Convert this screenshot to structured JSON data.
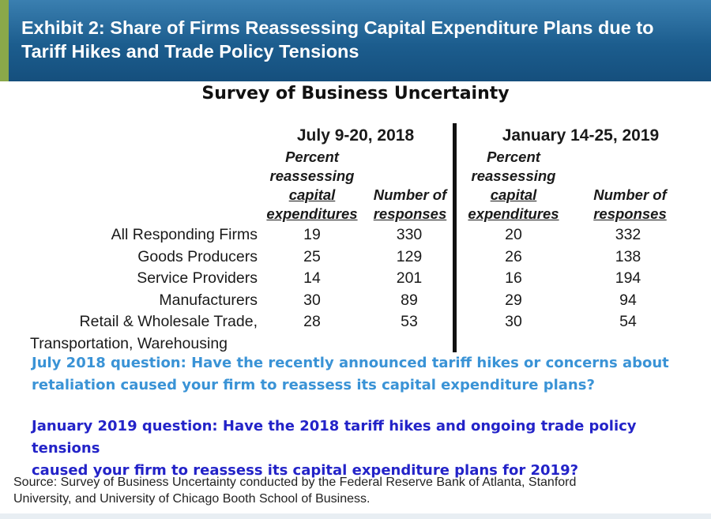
{
  "header": {
    "title_line1": "Exhibit 2: Share of Firms Reassessing Capital Expenditure Plans due to",
    "title_line2": "Tariff Hikes and Trade Policy Tensions",
    "accent_color": "#8aa84a",
    "bg_color": "#1c5d8e"
  },
  "survey_title": "Survey of Business Uncertainty",
  "periods": [
    {
      "label": "July 9-20, 2018",
      "col1": [
        "Percent",
        "reassessing",
        "capital",
        "expenditures"
      ],
      "col2": [
        "Number of",
        "responses"
      ]
    },
    {
      "label": "January 14-25, 2019",
      "col1": [
        "Percent",
        "reassessing",
        "capital",
        "expenditures"
      ],
      "col2": [
        "Number of",
        "responses"
      ]
    }
  ],
  "rows": [
    {
      "label": "All Responding Firms",
      "v": [
        "19",
        "330",
        "20",
        "332"
      ]
    },
    {
      "label": "Goods Producers",
      "v": [
        "25",
        "129",
        "26",
        "138"
      ]
    },
    {
      "label": "Service Providers",
      "v": [
        "14",
        "201",
        "16",
        "194"
      ]
    },
    {
      "label": "Manufacturers",
      "v": [
        "30",
        "89",
        "29",
        "94"
      ]
    },
    {
      "label": "Retail & Wholesale Trade,",
      "label2": "Transportation, Warehousing",
      "v": [
        "28",
        "53",
        "30",
        "54"
      ]
    }
  ],
  "questions": {
    "july_line1": "July 2018 question: Have the recently announced tariff hikes or concerns about",
    "july_line2": "retaliation caused your firm to reassess its capital expenditure plans?",
    "jan_line1": "January 2019 question: Have the 2018 tariff hikes and ongoing trade policy tensions",
    "jan_line2": "caused your firm to reassess its capital expenditure plans for 2019?",
    "july_color": "#3a93d6",
    "jan_color": "#2323c8"
  },
  "source": {
    "line1": "Source: Survey of Business Uncertainty conducted by the Federal Reserve Bank of Atlanta, Stanford",
    "line2": "University, and University of Chicago Booth School of Business."
  }
}
